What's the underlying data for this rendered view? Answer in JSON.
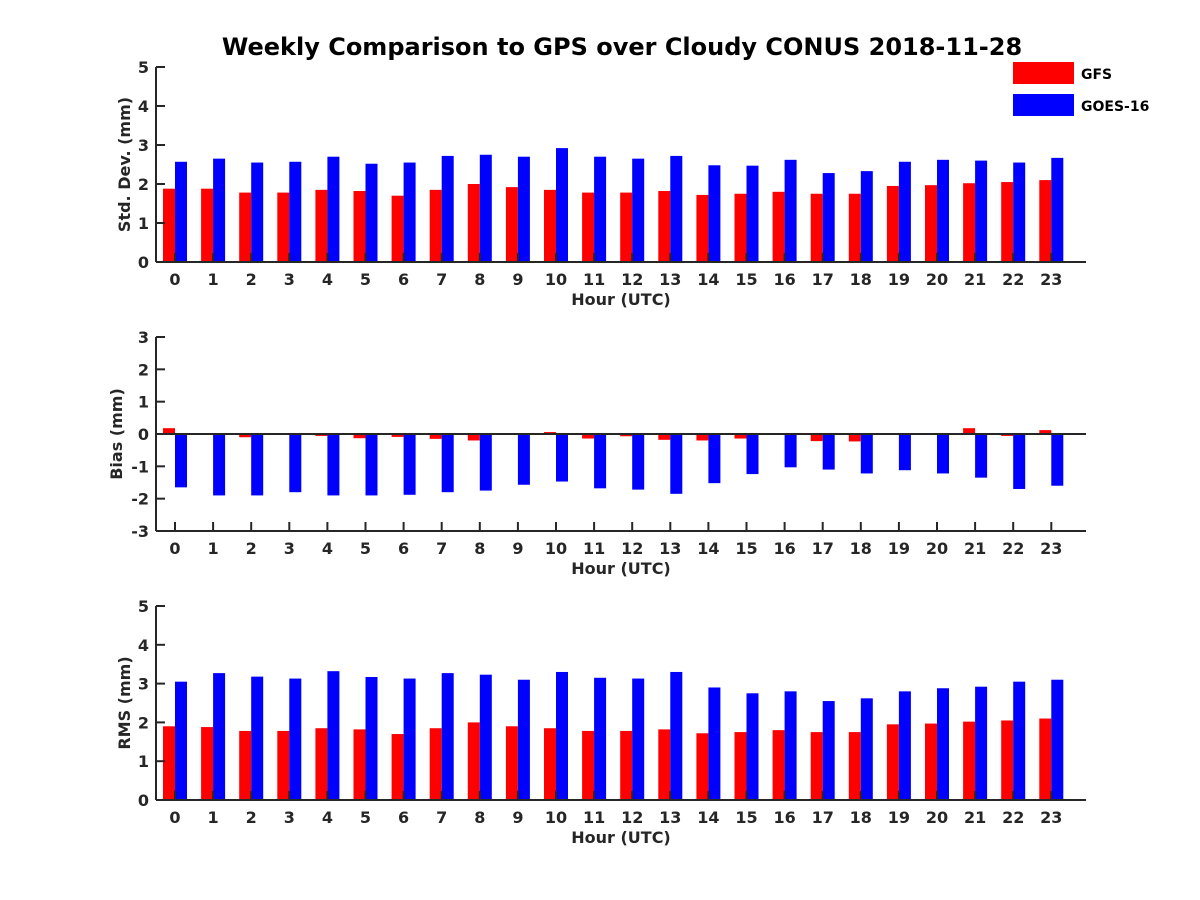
{
  "chart_data": {
    "type": "bar",
    "title": "Weekly Comparison to GPS over Cloudy CONUS 2018-11-28",
    "categories": [
      "0",
      "1",
      "2",
      "3",
      "4",
      "5",
      "6",
      "7",
      "8",
      "9",
      "10",
      "11",
      "12",
      "13",
      "14",
      "15",
      "16",
      "17",
      "18",
      "19",
      "20",
      "21",
      "22",
      "23"
    ],
    "legend": {
      "placement": "top-right",
      "entries": [
        {
          "name": "GFS",
          "color": "#ff0000"
        },
        {
          "name": "GOES-16",
          "color": "#0000ff"
        }
      ]
    },
    "grid": false,
    "panels": [
      {
        "ylabel": "Std. Dev. (mm)",
        "xlabel": "Hour (UTC)",
        "ylim": [
          0,
          5
        ],
        "yticks": [
          0,
          1,
          2,
          3,
          4,
          5
        ],
        "zero_line": false,
        "series": [
          {
            "name": "GFS",
            "color": "#ff0000",
            "values": [
              1.88,
              1.88,
              1.78,
              1.78,
              1.85,
              1.82,
              1.7,
              1.85,
              2.0,
              1.92,
              1.85,
              1.78,
              1.78,
              1.82,
              1.72,
              1.75,
              1.8,
              1.75,
              1.75,
              1.95,
              1.97,
              2.02,
              2.05,
              2.1
            ]
          },
          {
            "name": "GOES-16",
            "color": "#0000ff",
            "values": [
              2.57,
              2.65,
              2.55,
              2.57,
              2.7,
              2.52,
              2.55,
              2.72,
              2.75,
              2.7,
              2.92,
              2.7,
              2.65,
              2.72,
              2.48,
              2.47,
              2.62,
              2.28,
              2.33,
              2.57,
              2.62,
              2.6,
              2.55,
              2.67
            ]
          }
        ]
      },
      {
        "ylabel": "Bias (mm)",
        "xlabel": "Hour (UTC)",
        "ylim": [
          -3,
          3
        ],
        "yticks": [
          -3,
          -2,
          -1,
          0,
          1,
          2,
          3
        ],
        "zero_line": true,
        "series": [
          {
            "name": "GFS",
            "color": "#ff0000",
            "values": [
              0.18,
              0.0,
              -0.1,
              0.03,
              -0.06,
              -0.13,
              -0.09,
              -0.15,
              -0.2,
              0.0,
              0.06,
              -0.14,
              -0.07,
              -0.18,
              -0.2,
              -0.14,
              0.0,
              -0.22,
              -0.23,
              0.0,
              0.03,
              0.18,
              -0.06,
              0.12
            ]
          },
          {
            "name": "GOES-16",
            "color": "#0000ff",
            "values": [
              -1.65,
              -1.9,
              -1.9,
              -1.8,
              -1.9,
              -1.9,
              -1.88,
              -1.8,
              -1.75,
              -1.57,
              -1.47,
              -1.68,
              -1.72,
              -1.85,
              -1.52,
              -1.24,
              -1.03,
              -1.1,
              -1.22,
              -1.12,
              -1.22,
              -1.35,
              -1.7,
              -1.6
            ]
          }
        ]
      },
      {
        "ylabel": "RMS (mm)",
        "xlabel": "Hour (UTC)",
        "ylim": [
          0,
          5
        ],
        "yticks": [
          0,
          1,
          2,
          3,
          4,
          5
        ],
        "zero_line": false,
        "series": [
          {
            "name": "GFS",
            "color": "#ff0000",
            "values": [
              1.9,
              1.88,
              1.78,
              1.78,
              1.85,
              1.82,
              1.7,
              1.85,
              2.0,
              1.9,
              1.85,
              1.78,
              1.78,
              1.82,
              1.72,
              1.75,
              1.8,
              1.75,
              1.75,
              1.95,
              1.97,
              2.02,
              2.05,
              2.1
            ]
          },
          {
            "name": "GOES-16",
            "color": "#0000ff",
            "values": [
              3.05,
              3.27,
              3.18,
              3.13,
              3.32,
              3.17,
              3.13,
              3.27,
              3.23,
              3.1,
              3.3,
              3.15,
              3.13,
              3.3,
              2.9,
              2.75,
              2.8,
              2.55,
              2.62,
              2.8,
              2.88,
              2.92,
              3.05,
              3.1
            ]
          }
        ]
      }
    ]
  }
}
